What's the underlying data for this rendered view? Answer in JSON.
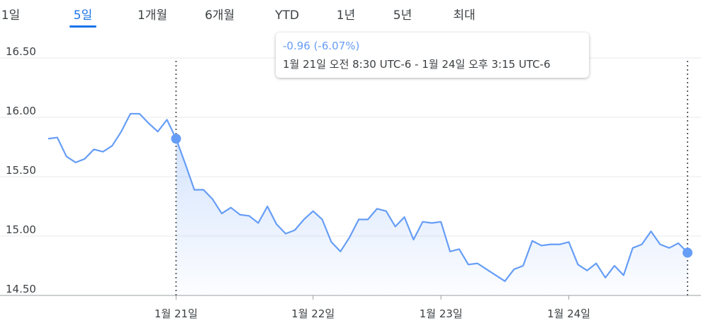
{
  "chart_data": {
    "type": "line",
    "tabs": [
      "1일",
      "5일",
      "1개월",
      "6개월",
      "YTD",
      "1년",
      "5년",
      "최대"
    ],
    "selected_tab": 1,
    "tooltip": {
      "change": "-0.96 (-6.07%)",
      "range": "1월 21일 오전 8:30 UTC-6 - 1월 24일 오후 3:15 UTC-6"
    },
    "selection": [
      14,
      70
    ],
    "color": "#669df6",
    "values": [
      15.82,
      15.83,
      15.67,
      15.62,
      15.65,
      15.73,
      15.71,
      15.76,
      15.88,
      16.03,
      16.03,
      15.95,
      15.88,
      15.98,
      15.82,
      15.61,
      15.39,
      15.39,
      15.31,
      15.19,
      15.24,
      15.18,
      15.17,
      15.11,
      15.25,
      15.1,
      15.02,
      15.05,
      15.14,
      15.21,
      15.14,
      14.95,
      14.87,
      14.99,
      15.14,
      15.14,
      15.23,
      15.21,
      15.08,
      15.16,
      14.97,
      15.12,
      15.11,
      15.12,
      14.87,
      14.89,
      14.76,
      14.77,
      14.72,
      14.67,
      14.62,
      14.72,
      14.75,
      14.96,
      14.92,
      14.93,
      14.93,
      14.95,
      14.76,
      14.71,
      14.77,
      14.65,
      14.75,
      14.67,
      14.9,
      14.93,
      15.04,
      14.93,
      14.9,
      14.94,
      14.86
    ],
    "xlim": [
      0,
      70
    ],
    "xticks": [
      {
        "value": 14,
        "label": "1월 21일"
      },
      {
        "value": 29,
        "label": "1월 22일"
      },
      {
        "value": 43,
        "label": "1월 23일"
      },
      {
        "value": 57,
        "label": "1월 24일"
      }
    ],
    "ylim": [
      14.5,
      16.5
    ],
    "yticks": [
      {
        "value": 14.5,
        "label": "14.50"
      },
      {
        "value": 15,
        "label": "15.00"
      },
      {
        "value": 15.5,
        "label": "15.50"
      },
      {
        "value": 16,
        "label": "16.00"
      },
      {
        "value": 16.5,
        "label": "16.50"
      }
    ],
    "grid": true
  }
}
